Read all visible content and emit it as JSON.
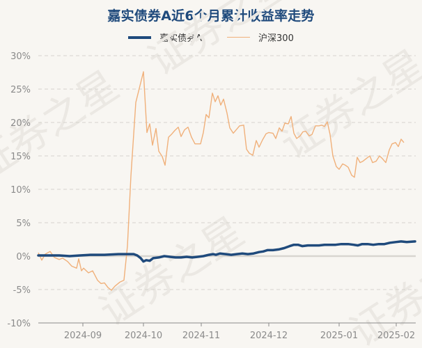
{
  "title": "嘉实债券A近6个月累计收益率走势",
  "legend": [
    {
      "label": "嘉实债券A",
      "color": "#1f4a7c"
    },
    {
      "label": "沪深300",
      "color": "#f0b07a"
    }
  ],
  "watermark": "证券之星",
  "colors": {
    "background": "#f8f6f2",
    "title": "#1f4a7c",
    "fund_line": "#1f4a7c",
    "index_line": "#f0b07a",
    "grid": "#d6d3ce",
    "axis": "#8a8a8a",
    "zero_line": "#d8d5d0"
  },
  "chart_data": {
    "type": "line",
    "title": "嘉实债券A近6个月累计收益率走势",
    "xlabel": "",
    "ylabel": "",
    "ylim": [
      -10,
      30
    ],
    "y_ticks": [
      "30%",
      "25%",
      "20%",
      "15%",
      "10%",
      "5%",
      "0%",
      "-5%",
      "-10%"
    ],
    "x_ticks": [
      "2024-09",
      "2024-10",
      "2024-11",
      "2024-12",
      "2025-01",
      "2025-02"
    ],
    "grid": "horizontal dashed",
    "legend_position": "top",
    "series": [
      {
        "name": "嘉实债券A",
        "color": "#1f4a7c",
        "points": [
          [
            55,
            0.1
          ],
          [
            70,
            0.1
          ],
          [
            85,
            0.1
          ],
          [
            100,
            0.0
          ],
          [
            115,
            0.1
          ],
          [
            130,
            0.2
          ],
          [
            150,
            0.2
          ],
          [
            170,
            0.3
          ],
          [
            185,
            0.3
          ],
          [
            192,
            0.3
          ],
          [
            197,
            0.1
          ],
          [
            202,
            -0.3
          ],
          [
            206,
            -0.8
          ],
          [
            210,
            -0.6
          ],
          [
            215,
            -0.7
          ],
          [
            220,
            -0.3
          ],
          [
            228,
            -0.2
          ],
          [
            236,
            -0.0
          ],
          [
            244,
            -0.1
          ],
          [
            252,
            -0.2
          ],
          [
            260,
            -0.2
          ],
          [
            268,
            -0.1
          ],
          [
            276,
            -0.2
          ],
          [
            284,
            -0.1
          ],
          [
            292,
            0.0
          ],
          [
            300,
            0.2
          ],
          [
            306,
            0.3
          ],
          [
            310,
            0.2
          ],
          [
            316,
            0.4
          ],
          [
            324,
            0.3
          ],
          [
            332,
            0.2
          ],
          [
            340,
            0.3
          ],
          [
            348,
            0.4
          ],
          [
            356,
            0.3
          ],
          [
            364,
            0.4
          ],
          [
            372,
            0.6
          ],
          [
            378,
            0.7
          ],
          [
            384,
            0.9
          ],
          [
            392,
            0.9
          ],
          [
            400,
            1.0
          ],
          [
            408,
            1.2
          ],
          [
            416,
            1.5
          ],
          [
            422,
            1.7
          ],
          [
            428,
            1.7
          ],
          [
            434,
            1.5
          ],
          [
            442,
            1.6
          ],
          [
            450,
            1.6
          ],
          [
            458,
            1.6
          ],
          [
            466,
            1.7
          ],
          [
            474,
            1.7
          ],
          [
            482,
            1.7
          ],
          [
            490,
            1.8
          ],
          [
            500,
            1.8
          ],
          [
            508,
            1.7
          ],
          [
            514,
            1.6
          ],
          [
            520,
            1.8
          ],
          [
            528,
            1.8
          ],
          [
            536,
            1.7
          ],
          [
            544,
            1.8
          ],
          [
            552,
            1.8
          ],
          [
            560,
            2.0
          ],
          [
            568,
            2.1
          ],
          [
            576,
            2.2
          ],
          [
            584,
            2.1
          ],
          [
            596,
            2.2
          ]
        ]
      },
      {
        "name": "沪深300",
        "color": "#f0b07a",
        "points": [
          [
            55,
            0.5
          ],
          [
            60,
            -0.6
          ],
          [
            65,
            0.3
          ],
          [
            72,
            0.7
          ],
          [
            78,
            -0.2
          ],
          [
            85,
            -0.5
          ],
          [
            90,
            -0.3
          ],
          [
            97,
            -0.8
          ],
          [
            103,
            -1.5
          ],
          [
            110,
            -1.8
          ],
          [
            113,
            -0.4
          ],
          [
            117,
            -2.2
          ],
          [
            120,
            -1.8
          ],
          [
            127,
            -2.5
          ],
          [
            133,
            -2.2
          ],
          [
            140,
            -3.6
          ],
          [
            145,
            -4.1
          ],
          [
            150,
            -4.0
          ],
          [
            155,
            -4.7
          ],
          [
            160,
            -5.1
          ],
          [
            165,
            -4.5
          ],
          [
            172,
            -3.9
          ],
          [
            178,
            -3.6
          ],
          [
            183,
            1.5
          ],
          [
            188,
            12.0
          ],
          [
            195,
            23.0
          ],
          [
            206,
            27.6
          ],
          [
            211,
            18.5
          ],
          [
            215,
            19.8
          ],
          [
            219,
            16.6
          ],
          [
            224,
            19.1
          ],
          [
            228,
            15.7
          ],
          [
            233,
            14.9
          ],
          [
            237,
            13.6
          ],
          [
            242,
            17.8
          ],
          [
            246,
            18.2
          ],
          [
            251,
            18.8
          ],
          [
            256,
            19.3
          ],
          [
            260,
            17.9
          ],
          [
            265,
            18.9
          ],
          [
            270,
            19.3
          ],
          [
            275,
            17.8
          ],
          [
            280,
            16.8
          ],
          [
            288,
            16.8
          ],
          [
            292,
            18.5
          ],
          [
            296,
            21.2
          ],
          [
            300,
            20.7
          ],
          [
            305,
            24.4
          ],
          [
            309,
            23.1
          ],
          [
            313,
            24.0
          ],
          [
            317,
            22.6
          ],
          [
            321,
            23.5
          ],
          [
            326,
            21.4
          ],
          [
            330,
            19.2
          ],
          [
            335,
            18.4
          ],
          [
            340,
            19.0
          ],
          [
            344,
            19.5
          ],
          [
            350,
            19.6
          ],
          [
            354,
            16.0
          ],
          [
            358,
            15.4
          ],
          [
            363,
            15.1
          ],
          [
            368,
            17.3
          ],
          [
            372,
            16.3
          ],
          [
            377,
            17.4
          ],
          [
            382,
            18.3
          ],
          [
            386,
            18.5
          ],
          [
            392,
            18.4
          ],
          [
            396,
            17.6
          ],
          [
            401,
            19.2
          ],
          [
            405,
            18.7
          ],
          [
            409,
            19.9
          ],
          [
            414,
            19.8
          ],
          [
            418,
            20.9
          ],
          [
            422,
            18.4
          ],
          [
            426,
            17.6
          ],
          [
            431,
            18.0
          ],
          [
            435,
            18.6
          ],
          [
            439,
            18.7
          ],
          [
            444,
            18.0
          ],
          [
            448,
            18.2
          ],
          [
            453,
            19.5
          ],
          [
            458,
            19.5
          ],
          [
            462,
            19.6
          ],
          [
            466,
            19.4
          ],
          [
            470,
            20.1
          ],
          [
            474,
            18.2
          ],
          [
            478,
            15.0
          ],
          [
            483,
            13.4
          ],
          [
            487,
            13.0
          ],
          [
            492,
            13.8
          ],
          [
            496,
            13.6
          ],
          [
            500,
            13.3
          ],
          [
            505,
            12.1
          ],
          [
            509,
            11.8
          ],
          [
            513,
            14.8
          ],
          [
            517,
            14.0
          ],
          [
            521,
            14.2
          ],
          [
            526,
            14.6
          ],
          [
            531,
            15.0
          ],
          [
            535,
            14.0
          ],
          [
            540,
            14.2
          ],
          [
            545,
            15.0
          ],
          [
            549,
            14.6
          ],
          [
            554,
            14.0
          ],
          [
            559,
            15.9
          ],
          [
            563,
            16.8
          ],
          [
            568,
            17.0
          ],
          [
            572,
            16.4
          ],
          [
            576,
            17.5
          ],
          [
            580,
            17.0
          ]
        ]
      }
    ]
  }
}
